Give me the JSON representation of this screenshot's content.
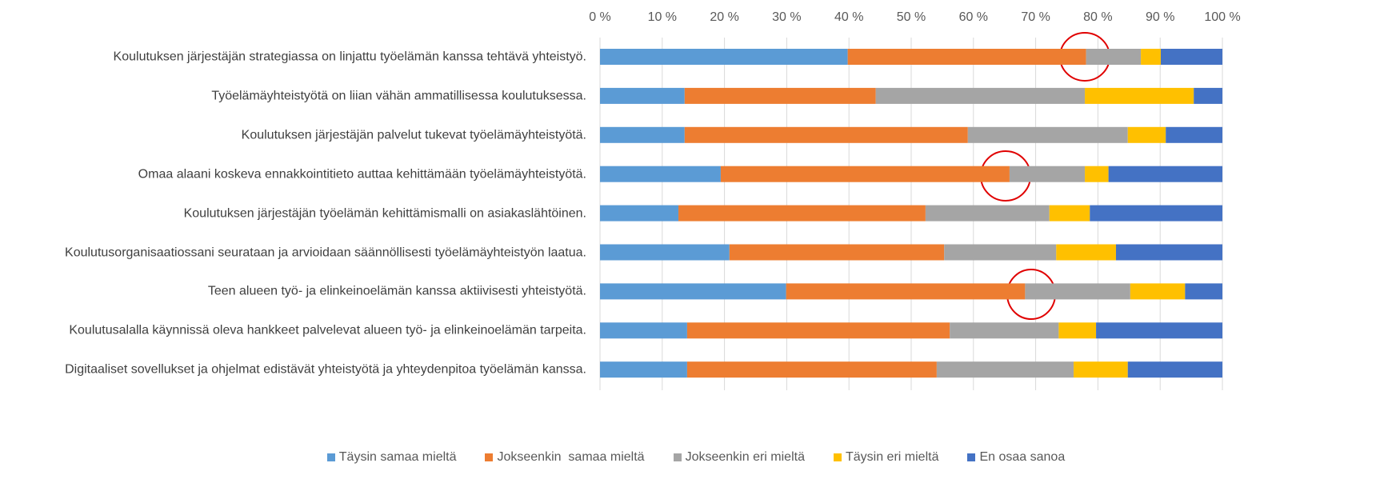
{
  "chart_data": {
    "type": "stacked_bar_horizontal",
    "categories": [
      "Koulutuksen järjestäjän strategiassa on linjattu työelämän kanssa tehtävä yhteistyö.",
      "Työelämäyhteistyötä on liian vähän ammatillisessa koulutuksessa.",
      "Koulutuksen järjestäjän palvelut tukevat työelämäyhteistyötä.",
      "Omaa alaani koskeva ennakkointitieto auttaa kehittämään työelämäyhteistyötä.",
      "Koulutuksen järjestäjän työelämän kehittämismalli on asiakaslähtöinen.",
      "Koulutusorganisaatiossani seurataan ja arvioidaan säännöllisesti työelämäyhteistyön laatua.",
      "Teen alueen työ- ja elinkeinoelämän kanssa aktiivisesti yhteistyötä.",
      "Koulutusalalla käynnissä oleva hankkeet palvelevat alueen työ- ja elinkeinoelämän tarpeita.",
      "Digitaaliset sovellukset ja ohjelmat edistävät yhteistyötä ja yhteydenpitoa työelämän kanssa."
    ],
    "series": [
      {
        "name": "Täysin samaa mieltä",
        "color": "#5b9bd5",
        "values": [
          39.8,
          13.6,
          13.6,
          19.4,
          12.6,
          20.8,
          29.9,
          14.0,
          14.0
        ]
      },
      {
        "name": "Jokseenkin  samaa mieltä",
        "color": "#ed7d31",
        "values": [
          38.3,
          30.7,
          45.5,
          46.4,
          39.7,
          34.5,
          38.4,
          42.2,
          40.1
        ]
      },
      {
        "name": "Jokseenkin eri mieltä",
        "color": "#a5a5a5",
        "values": [
          8.8,
          33.6,
          25.7,
          12.1,
          19.9,
          18.0,
          16.9,
          17.5,
          22.0
        ]
      },
      {
        "name": "Täysin eri mieltä",
        "color": "#ffc000",
        "values": [
          3.2,
          17.5,
          6.1,
          3.8,
          6.5,
          9.6,
          8.8,
          6.0,
          8.7
        ]
      },
      {
        "name": "En osaa sanoa",
        "color": "#4472c4",
        "values": [
          9.9,
          4.6,
          9.1,
          18.3,
          21.3,
          17.1,
          6.0,
          20.3,
          15.2
        ]
      }
    ],
    "xlim": [
      0,
      100
    ],
    "xticks": [
      {
        "value": 0,
        "label": "0 %"
      },
      {
        "value": 10,
        "label": "10 %"
      },
      {
        "value": 20,
        "label": "20 %"
      },
      {
        "value": 30,
        "label": "30 %"
      },
      {
        "value": 40,
        "label": "40 %"
      },
      {
        "value": 50,
        "label": "50 %"
      },
      {
        "value": 60,
        "label": "60 %"
      },
      {
        "value": 70,
        "label": "70 %"
      },
      {
        "value": 80,
        "label": "80 %"
      },
      {
        "value": 90,
        "label": "90 %"
      },
      {
        "value": 100,
        "label": "100 %"
      }
    ],
    "grid": true,
    "legend": "bottom"
  }
}
